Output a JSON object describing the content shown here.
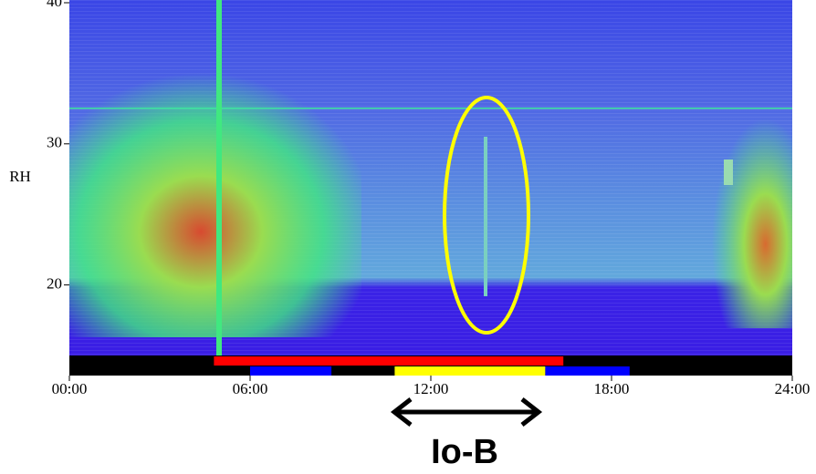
{
  "chart_data": {
    "type": "spectrogram",
    "y_label": "RH",
    "xlim": [
      0,
      24
    ],
    "xticks": [
      {
        "value": 0,
        "label": "00:00"
      },
      {
        "value": 6,
        "label": "06:00"
      },
      {
        "value": 12,
        "label": "12:00"
      },
      {
        "value": 18,
        "label": "18:00"
      },
      {
        "value": 24,
        "label": "24:00"
      }
    ],
    "ylim": [
      15,
      40
    ],
    "yticks": [
      20,
      30,
      40
    ],
    "intervals": [
      {
        "start": 4.8,
        "end": 16.4,
        "color": "#ff0000"
      },
      {
        "start": 6.0,
        "end": 8.7,
        "color": "#0000ff"
      },
      {
        "start": 10.8,
        "end": 15.8,
        "color": "#ffff00"
      },
      {
        "start": 15.8,
        "end": 18.6,
        "color": "#0000ff"
      }
    ],
    "annotation": "Io-B"
  }
}
